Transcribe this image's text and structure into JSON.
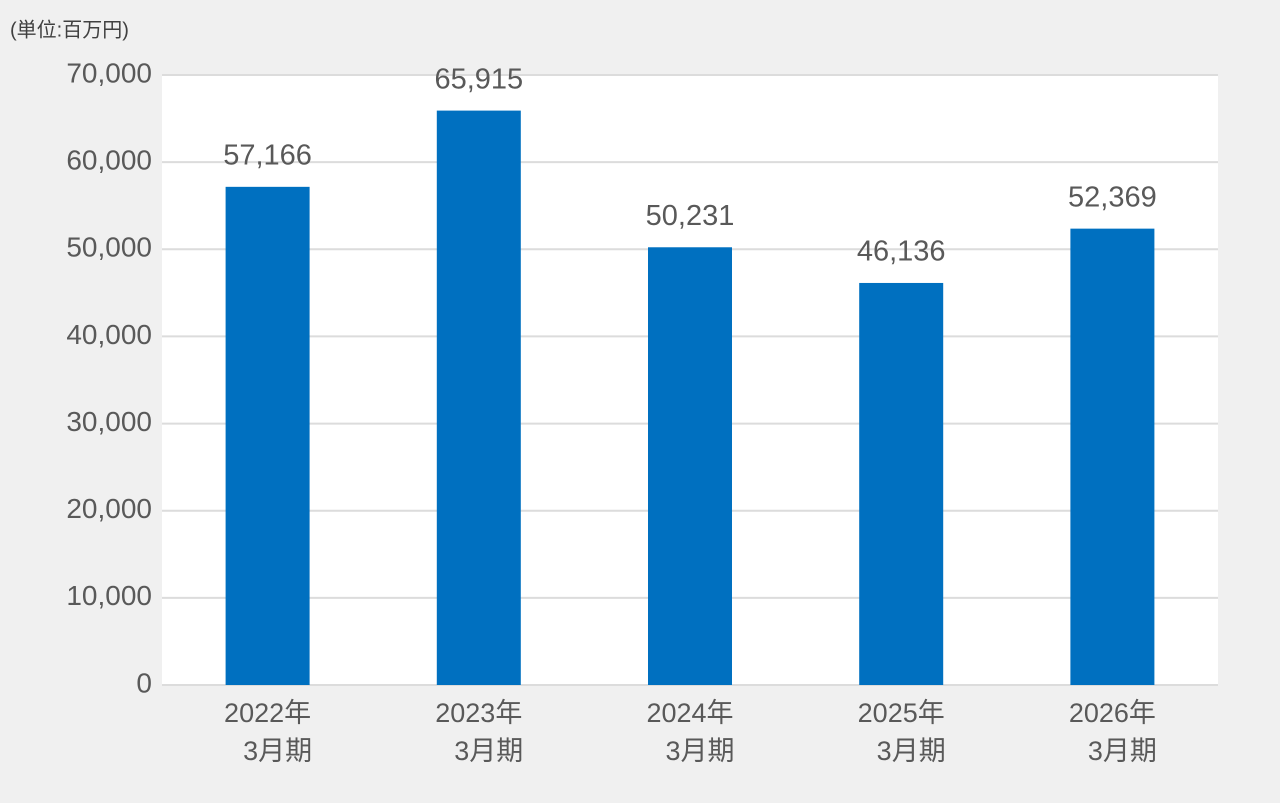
{
  "chart_data": {
    "type": "bar",
    "y_axis_label": "(単位:百万円)",
    "categories": [
      [
        "2022年",
        "3月期"
      ],
      [
        "2023年",
        "3月期"
      ],
      [
        "2024年",
        "3月期"
      ],
      [
        "2025年",
        "3月期"
      ],
      [
        "2026年",
        "3月期"
      ]
    ],
    "values": [
      57166,
      65915,
      50231,
      46136,
      52369
    ],
    "value_labels": [
      "57,166",
      "65,915",
      "50,231",
      "46,136",
      "52,369"
    ],
    "color": "#0070c0",
    "ylim": [
      0,
      70000
    ],
    "yticks": [
      0,
      {
        "value": 10000,
        "label": "10,000"
      },
      {
        "value": 20000,
        "label": "20,000"
      },
      {
        "value": 30000,
        "label": "30,000"
      },
      {
        "value": 40000,
        "label": "40,000"
      },
      {
        "value": 50000,
        "label": "50,000"
      },
      {
        "value": 60000,
        "label": "60,000"
      },
      {
        "value": 70000,
        "label": "70,000"
      }
    ],
    "grid": true
  }
}
